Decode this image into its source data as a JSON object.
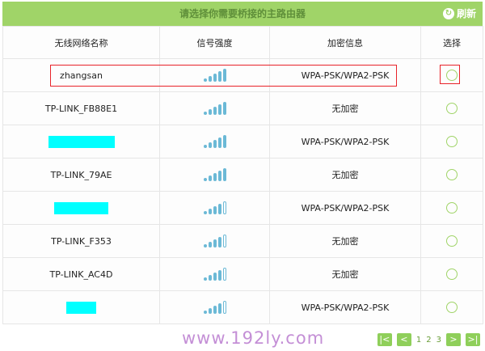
{
  "header": {
    "title": "请选择你需要桥接的主路由器",
    "refresh_label": "刷新",
    "refresh_icon": "refresh-icon"
  },
  "columns": [
    "无线网络名称",
    "信号强度",
    "加密信息",
    "选择"
  ],
  "rows": [
    {
      "ssid": "zhangsan",
      "redacted": false,
      "signal": 5,
      "security": "WPA-PSK/WPA2-PSK",
      "highlighted": true
    },
    {
      "ssid": "TP-LINK_FB88E1",
      "redacted": false,
      "signal": 5,
      "security": "无加密"
    },
    {
      "ssid": "",
      "redacted": true,
      "signal": 5,
      "security": "WPA-PSK/WPA2-PSK"
    },
    {
      "ssid": "TP-LINK_79AE",
      "redacted": false,
      "signal": 5,
      "security": "无加密"
    },
    {
      "ssid": "",
      "redacted": true,
      "signal": 4,
      "security": "WPA-PSK/WPA2-PSK"
    },
    {
      "ssid": "TP-LINK_F353",
      "redacted": false,
      "signal": 4,
      "security": "无加密"
    },
    {
      "ssid": "TP-LINK_AC4D",
      "redacted": false,
      "signal": 4,
      "security": "无加密"
    },
    {
      "ssid": "",
      "redacted": true,
      "signal": 4,
      "security": "WPA-PSK/WPA2-PSK"
    }
  ],
  "signal_max": 5,
  "pager": {
    "first": "|<",
    "prev": "<",
    "pages": [
      "1",
      "2",
      "3"
    ],
    "next": ">",
    "last": ">|"
  },
  "watermark": "www.192ly.com",
  "colors": {
    "accent": "#a0d468",
    "signal": "#6bb9d6",
    "highlight": "#e8232a",
    "redaction": "#00ffff"
  }
}
